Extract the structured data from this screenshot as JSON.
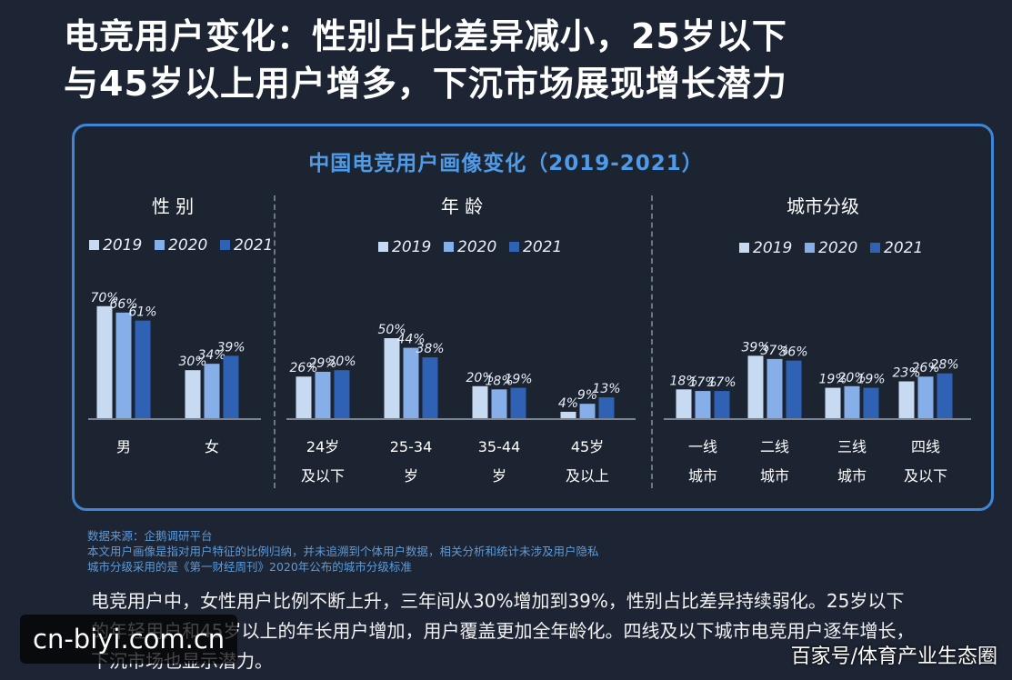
{
  "headline": {
    "line1": "电竞用户变化：性别占比差异减小，25岁以下",
    "line2": "与45岁以上用户增多，下沉市场展现增长潜力"
  },
  "panel_title": "中国电竞用户画像变化（2019-2021）",
  "colors": {
    "2019": "#c8d9f2",
    "2020": "#86aee8",
    "2021": "#2f62b5",
    "accent": "#4f9be8"
  },
  "chart_data": [
    {
      "type": "bar",
      "title": "性 别",
      "categories": [
        [
          "男"
        ],
        [
          "女"
        ]
      ],
      "legend": [
        "2019",
        "2020",
        "2021"
      ],
      "series": [
        {
          "name": "2019",
          "values": [
            70,
            30
          ]
        },
        {
          "name": "2020",
          "values": [
            66,
            34
          ]
        },
        {
          "name": "2021",
          "values": [
            61,
            39
          ]
        }
      ],
      "unit": "%",
      "ylim": [
        0,
        100
      ]
    },
    {
      "type": "bar",
      "title": "年 龄",
      "categories": [
        [
          "24岁",
          "及以下"
        ],
        [
          "25-34",
          "岁"
        ],
        [
          "35-44",
          "岁"
        ],
        [
          "45岁",
          "及以上"
        ]
      ],
      "legend": [
        "2019",
        "2020",
        "2021"
      ],
      "series": [
        {
          "name": "2019",
          "values": [
            26,
            50,
            20,
            4
          ]
        },
        {
          "name": "2020",
          "values": [
            29,
            44,
            18,
            9
          ]
        },
        {
          "name": "2021",
          "values": [
            30,
            38,
            19,
            13
          ]
        }
      ],
      "unit": "%",
      "ylim": [
        0,
        100
      ]
    },
    {
      "type": "bar",
      "title": "城市分级",
      "categories": [
        [
          "一线",
          "城市"
        ],
        [
          "二线",
          "城市"
        ],
        [
          "三线",
          "城市"
        ],
        [
          "四线",
          "及以下"
        ]
      ],
      "legend": [
        "2019",
        "2020",
        "2021"
      ],
      "series": [
        {
          "name": "2019",
          "values": [
            18,
            39,
            19,
            23
          ]
        },
        {
          "name": "2020",
          "values": [
            17,
            37,
            20,
            26
          ]
        },
        {
          "name": "2021",
          "values": [
            17,
            36,
            19,
            28
          ]
        }
      ],
      "unit": "%",
      "ylim": [
        0,
        100
      ]
    }
  ],
  "notes": [
    "数据来源：企鹅调研平台",
    "本文用户画像是指对用户特征的比例归纳，并未追溯到个体用户数据，相关分析和统计未涉及用户隐私",
    "城市分级采用的是《第一财经周刊》2020年公布的城市分级标准"
  ],
  "summary": [
    "电竞用户中，女性用户比例不断上升，三年间从30%增加到39%，性别占比差异持续弱化。25岁以下",
    "的年轻用户和45岁以上的年长用户增加，用户覆盖更加全年龄化。四线及以下城市电竞用户逐年增长，",
    "下沉市场也显示潜力。"
  ],
  "watermarks": {
    "left": "cn-biyi.com.cn",
    "right": "百家号/体育产业生态圈"
  }
}
